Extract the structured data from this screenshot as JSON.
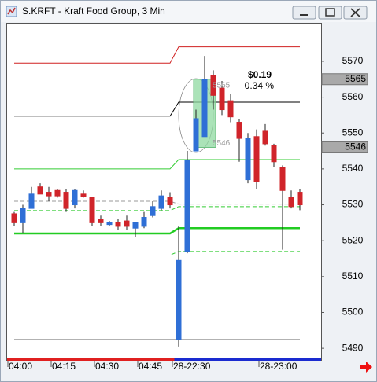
{
  "window": {
    "title": "S.KRFT - Kraft Food Group, 3 Min"
  },
  "chart_data": {
    "type": "candlestick",
    "categories": [
      "04:00",
      null,
      null,
      null,
      null,
      "04:15",
      null,
      null,
      null,
      null,
      "04:30",
      null,
      null,
      null,
      null,
      "04:45",
      null,
      null,
      null,
      "28-22:30",
      null,
      null,
      null,
      null,
      null,
      null,
      null,
      null,
      null,
      "28-23:00",
      null,
      null,
      null,
      null
    ],
    "open": [
      5527.5,
      5525,
      5529,
      5535,
      5533.5,
      5534,
      5533.5,
      5530,
      5533,
      5532,
      5526,
      5524.5,
      5525,
      5525.5,
      5523.5,
      5524,
      5527,
      5529,
      5532,
      5492.5,
      5517,
      5545,
      5549,
      5566,
      5562.5,
      5559,
      5553,
      5537,
      5549,
      5550.5,
      5546.5,
      5540.5,
      5532,
      5533.5
    ],
    "high": [
      5528,
      5530,
      5535,
      5536,
      5535,
      5534.5,
      5534.5,
      5534.5,
      5534,
      5532,
      5527,
      5525.5,
      5526,
      5527,
      5525,
      5528,
      5531,
      5534,
      5533.5,
      5524,
      5545,
      5556.5,
      5571.5,
      5567.5,
      5564.5,
      5561,
      5554,
      5550,
      5551,
      5552.5,
      5547,
      5541,
      5534,
      5534.5
    ],
    "low": [
      5524,
      5522,
      5529,
      5533,
      5531,
      5532,
      5528,
      5529,
      5532,
      5524,
      5524,
      5524,
      5523,
      5523,
      5521,
      5523.5,
      5526.5,
      5528.5,
      5529,
      5490.5,
      5516.5,
      5545,
      5549,
      5556.5,
      5555,
      5553,
      5542,
      5536,
      5534.5,
      5546.5,
      5540.5,
      5517.5,
      5529,
      5528.5
    ],
    "close": [
      5525,
      5529,
      5533,
      5533,
      5532.5,
      5532.5,
      5529,
      5534,
      5532.3,
      5525,
      5525,
      5525,
      5524,
      5524,
      5525,
      5526.5,
      5529.5,
      5532.5,
      5530,
      5514.5,
      5542.5,
      5554,
      5565,
      5560.5,
      5556.5,
      5554.5,
      5548.5,
      5548.5,
      5536.5,
      5547,
      5542,
      5534,
      5529.5,
      5530
    ],
    "up_color": "#2f6fd6",
    "down_color": "#d0242a",
    "ylim": [
      5487.4,
      5580.5
    ],
    "yticks": [
      5490,
      5500,
      5510,
      5520,
      5530,
      5540,
      5550,
      5560,
      5570
    ],
    "lines": [
      {
        "color": "#d02020",
        "width": 1,
        "dashed": false,
        "values": [
          5569.5,
          5569.5,
          5569.5,
          5569.5,
          5569.5,
          5569.5,
          5569.5,
          5569.5,
          5569.5,
          5569.5,
          5569.5,
          5569.5,
          5569.5,
          5569.5,
          5569.5,
          5569.5,
          5569.5,
          5569.5,
          5569.5,
          5574,
          5574,
          5574,
          5574,
          5574,
          5574,
          5574,
          5574,
          5574,
          5574,
          5574,
          5574,
          5574,
          5574,
          5574
        ]
      },
      {
        "color": "#000000",
        "width": 1,
        "dashed": false,
        "values": [
          5554.7,
          5554.7,
          5554.7,
          5554.7,
          5554.7,
          5554.7,
          5554.7,
          5554.7,
          5554.7,
          5554.7,
          5554.7,
          5554.7,
          5554.7,
          5554.7,
          5554.7,
          5554.7,
          5554.7,
          5554.7,
          5554.7,
          5558.6,
          5558.6,
          5558.6,
          5558.6,
          5558.6,
          5558.6,
          5558.6,
          5558.6,
          5558.6,
          5558.6,
          5558.6,
          5558.6,
          5558.6,
          5558.6,
          5558.6
        ]
      },
      {
        "color": "#33cc33",
        "width": 1,
        "dashed": false,
        "values": [
          5540,
          5540,
          5540,
          5540,
          5540,
          5540,
          5540,
          5540,
          5540,
          5540,
          5540,
          5540,
          5540,
          5540,
          5540,
          5540,
          5540,
          5540,
          5540,
          5542.6,
          5542.6,
          5542.6,
          5542.6,
          5542.6,
          5542.6,
          5542.6,
          5542.6,
          5542.6,
          5542.6,
          5542.6,
          5542.6,
          5542.6,
          5542.6,
          5542.6
        ]
      },
      {
        "color": "#999999",
        "width": 1,
        "dashed": true,
        "values": [
          5531,
          5531,
          5531,
          5531,
          5531,
          5531,
          5531,
          5531,
          5531,
          5531,
          5531,
          5531,
          5531,
          5531,
          5531,
          5531,
          5531,
          5531,
          5531,
          5530.2,
          5530.2,
          5530.2,
          5530.2,
          5530.2,
          5530.2,
          5530.2,
          5530.2,
          5530.2,
          5530.2,
          5530.2,
          5530.2,
          5530.2,
          5530.2,
          5530.2
        ]
      },
      {
        "color": "#33cc33",
        "width": 1,
        "dashed": true,
        "values": [
          5528.4,
          5528.4,
          5528.4,
          5528.4,
          5528.4,
          5528.4,
          5528.4,
          5528.4,
          5528.4,
          5528.4,
          5528.4,
          5528.4,
          5528.4,
          5528.4,
          5528.4,
          5528.4,
          5528.4,
          5528.4,
          5528.4,
          5529.5,
          5529.5,
          5529.5,
          5529.5,
          5529.5,
          5529.5,
          5529.5,
          5529.5,
          5529.5,
          5529.5,
          5529.5,
          5529.5,
          5529.5,
          5529.5,
          5529.5
        ]
      },
      {
        "color": "#22cc22",
        "width": 2.5,
        "dashed": false,
        "values": [
          5522,
          5522,
          5522,
          5522,
          5522,
          5522,
          5522,
          5522,
          5522,
          5522,
          5522,
          5522,
          5522,
          5522,
          5522,
          5522,
          5522,
          5522,
          5522,
          5523.5,
          5523.5,
          5523.5,
          5523.5,
          5523.5,
          5523.5,
          5523.5,
          5523.5,
          5523.5,
          5523.5,
          5523.5,
          5523.5,
          5523.5,
          5523.5,
          5523.5
        ]
      },
      {
        "color": "#33cc33",
        "width": 1,
        "dashed": true,
        "values": [
          5516,
          5516,
          5516,
          5516,
          5516,
          5516,
          5516,
          5516,
          5516,
          5516,
          5516,
          5516,
          5516,
          5516,
          5516,
          5516,
          5516,
          5516,
          5516,
          5517,
          5517,
          5517,
          5517,
          5517,
          5517,
          5517,
          5517,
          5517,
          5517,
          5517,
          5517,
          5517,
          5517,
          5517
        ]
      },
      {
        "color": "#999999",
        "width": 1,
        "dashed": false,
        "values": [
          5492.5,
          5492.5,
          5492.5,
          5492.5,
          5492.5,
          5492.5,
          5492.5,
          5492.5,
          5492.5,
          5492.5,
          5492.5,
          5492.5,
          5492.5,
          5492.5,
          5492.5,
          5492.5,
          5492.5,
          5492.5,
          5492.5,
          5492.5,
          5492.5,
          5492.5,
          5492.5,
          5492.5,
          5492.5,
          5492.5,
          5492.5,
          5492.5,
          5492.5,
          5492.5,
          5492.5,
          5492.5,
          5492.5,
          5492.5
        ]
      }
    ],
    "price_markers": [
      5565,
      5546
    ],
    "measure": {
      "from": 5546,
      "to": 5565,
      "change_label": "$0.19",
      "percent_label": "0.34 %"
    }
  }
}
